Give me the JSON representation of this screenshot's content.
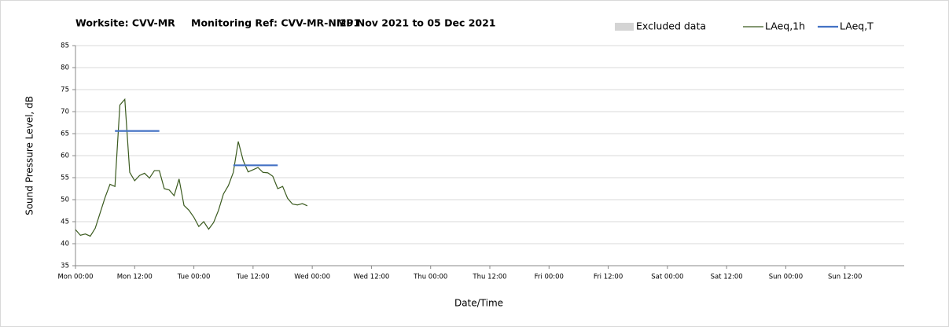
{
  "chart_data": {
    "type": "line",
    "title_parts": [
      "Worksite: CVV-MR",
      "Monitoring Ref: CVV-MR-NMP1",
      "29 Nov 2021 to 05 Dec 2021"
    ],
    "ylabel": "Sound Pressure Level, dB",
    "xlabel": "Date/Time",
    "excluded_data": {
      "name": "Excluded data",
      "color": "#d4d4d4"
    },
    "xlim": [
      0,
      168
    ],
    "xticks": [
      {
        "value": 0,
        "label": "Mon 00:00"
      },
      {
        "value": 12,
        "label": "Mon 12:00"
      },
      {
        "value": 24,
        "label": "Tue 00:00"
      },
      {
        "value": 36,
        "label": "Tue 12:00"
      },
      {
        "value": 48,
        "label": "Wed 00:00"
      },
      {
        "value": 60,
        "label": "Wed 12:00"
      },
      {
        "value": 72,
        "label": "Thu 00:00"
      },
      {
        "value": 84,
        "label": "Thu 12:00"
      },
      {
        "value": 96,
        "label": "Fri 00:00"
      },
      {
        "value": 108,
        "label": "Fri 12:00"
      },
      {
        "value": 120,
        "label": "Sat 00:00"
      },
      {
        "value": 132,
        "label": "Sat 12:00"
      },
      {
        "value": 144,
        "label": "Sun 00:00"
      },
      {
        "value": 156,
        "label": "Sun 12:00"
      }
    ],
    "ylim": [
      35,
      85
    ],
    "yticks": [
      35,
      40,
      45,
      50,
      55,
      60,
      65,
      70,
      75,
      80,
      85
    ],
    "grid": true,
    "series": [
      {
        "name": "LAeq,1h",
        "color": "#3a5a1e",
        "x": [
          0,
          1,
          2,
          3,
          4,
          5,
          6,
          7,
          8,
          9,
          10,
          11,
          12,
          13,
          14,
          15,
          16,
          17,
          18,
          19,
          20,
          21,
          22,
          23,
          24,
          25,
          26,
          27,
          28,
          29,
          30,
          31,
          32,
          33,
          34,
          35,
          36,
          37,
          38,
          39,
          40,
          41,
          42,
          43,
          44,
          45,
          46,
          47
        ],
        "values": [
          43.2,
          41.9,
          42.2,
          41.7,
          43.5,
          47,
          50.5,
          53.5,
          53,
          71.5,
          72.8,
          56.2,
          54.3,
          55.5,
          56,
          54.9,
          56.6,
          56.6,
          52.5,
          52.2,
          50.9,
          54.7,
          48.7,
          47.6,
          46,
          43.9,
          45,
          43.3,
          44.8,
          47.6,
          51.3,
          53.2,
          56.2,
          63.2,
          58.9,
          56.3,
          56.8,
          57.3,
          56.2,
          56.1,
          55.3,
          52.5,
          53,
          50.3,
          49,
          48.8,
          49.1,
          48.6
        ]
      },
      {
        "name": "LAeq,T",
        "color": "#4472c4",
        "segments": [
          {
            "x": [
              8,
              17
            ],
            "value": 65.6
          },
          {
            "x": [
              32,
              41
            ],
            "value": 57.8
          }
        ]
      }
    ]
  }
}
